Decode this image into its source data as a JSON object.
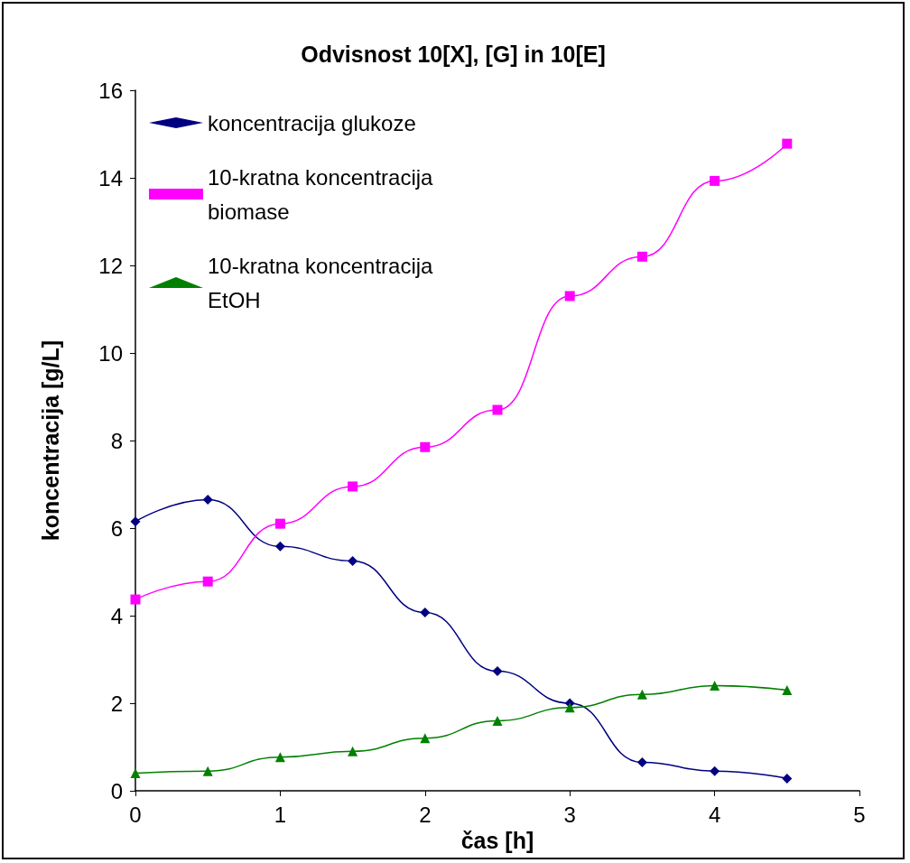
{
  "chart_data": {
    "type": "line",
    "title": "Odvisnost 10[X], [G] in 10[E]",
    "xlabel": "čas [h]",
    "ylabel": "koncentracija [g/L]",
    "x": [
      0,
      0.5,
      1,
      1.5,
      2,
      2.5,
      3,
      3.5,
      4,
      4.5
    ],
    "series": [
      {
        "name": "koncentracija glukoze",
        "color": "#000080",
        "marker": "diamond",
        "values": [
          6.15,
          6.65,
          5.58,
          5.25,
          4.07,
          2.73,
          2.0,
          0.65,
          0.45,
          0.28
        ]
      },
      {
        "name": "10-kratna koncentracija biomase",
        "color": "#ff00ff",
        "marker": "square",
        "values": [
          4.37,
          4.78,
          6.1,
          6.95,
          7.85,
          8.7,
          11.3,
          12.2,
          13.93,
          14.78
        ]
      },
      {
        "name": "10-kratna koncentracija EtOH",
        "color": "#008000",
        "marker": "triangle",
        "values": [
          0.4,
          0.45,
          0.77,
          0.9,
          1.2,
          1.6,
          1.9,
          2.2,
          2.4,
          2.3
        ]
      }
    ],
    "xlim": [
      0,
      5
    ],
    "xticks": [
      0,
      1,
      2,
      3,
      4,
      5
    ],
    "ylim": [
      0,
      16
    ],
    "yticks": [
      0,
      2,
      4,
      6,
      8,
      10,
      12,
      14,
      16
    ],
    "grid": false,
    "legend": "top left",
    "line_style": "solid"
  }
}
